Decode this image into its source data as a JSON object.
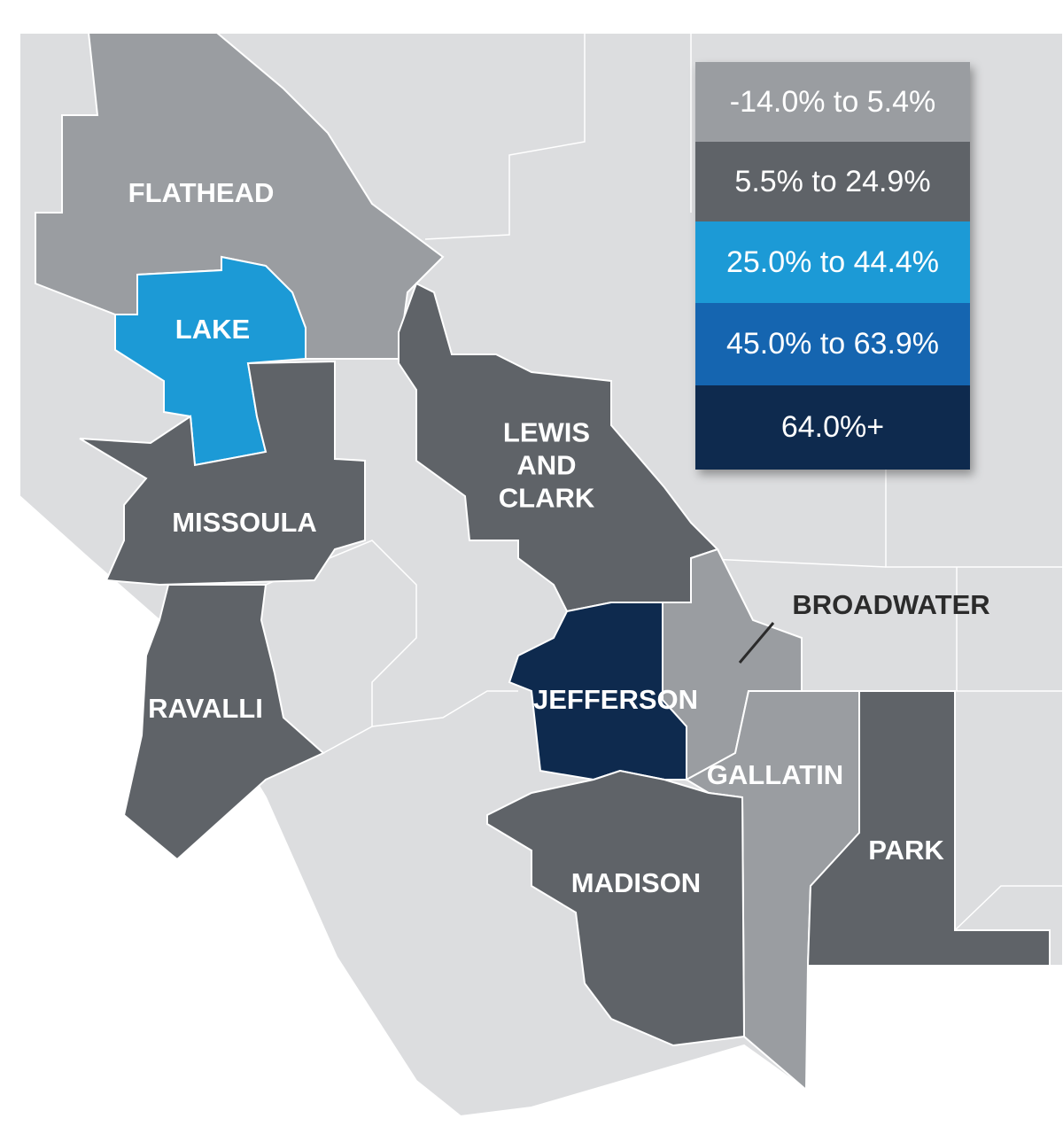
{
  "legend": [
    {
      "label": "-14.0% to 5.4%",
      "color": "#9a9da1"
    },
    {
      "label": "5.5% to 24.9%",
      "color": "#5f6368"
    },
    {
      "label": "25.0% to 44.4%",
      "color": "#1c9ad6"
    },
    {
      "label": "45.0% to 63.9%",
      "color": "#1565b0"
    },
    {
      "label": "64.0%+",
      "color": "#0e2a4e"
    }
  ],
  "counties": [
    {
      "name": "FLATHEAD",
      "color": "#9a9da1"
    },
    {
      "name": "LAKE",
      "color": "#1c9ad6"
    },
    {
      "name": "MISSOULA",
      "color": "#5f6368"
    },
    {
      "name": "RAVALLI",
      "color": "#5f6368"
    },
    {
      "name": "LEWIS AND CLARK",
      "color": "#5f6368"
    },
    {
      "name": "BROADWATER",
      "color": "#9a9da1"
    },
    {
      "name": "JEFFERSON",
      "color": "#0e2a4e"
    },
    {
      "name": "GALLATIN",
      "color": "#9a9da1"
    },
    {
      "name": "PARK",
      "color": "#5f6368"
    },
    {
      "name": "MADISON",
      "color": "#5f6368"
    }
  ]
}
